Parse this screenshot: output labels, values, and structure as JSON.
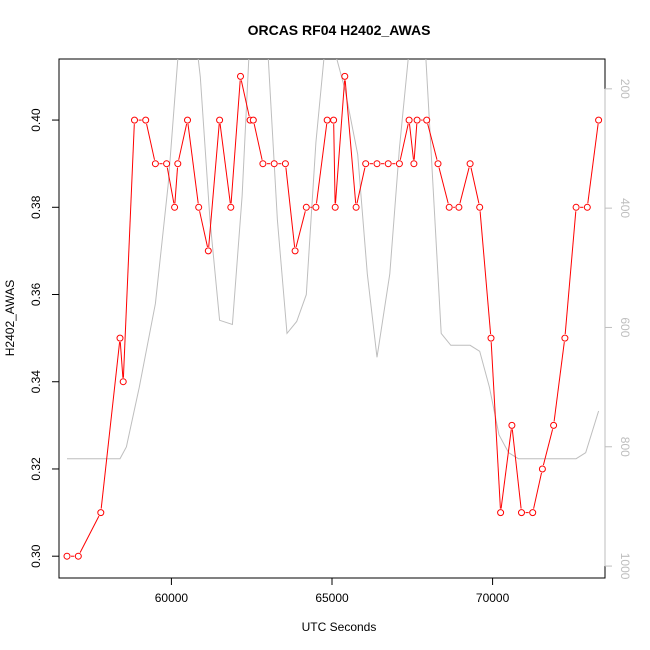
{
  "chart_data": {
    "type": "line",
    "title": "ORCAS RF04 H2402_AWAS",
    "xlabel": "UTC Seconds",
    "ylabel": "H2402_AWAS",
    "xlim": [
      56500,
      73500
    ],
    "ylim": [
      0.295,
      0.414
    ],
    "x_ticks": [
      60000,
      65000,
      70000
    ],
    "y_ticks": [
      0.3,
      0.32,
      0.34,
      0.36,
      0.38,
      0.4
    ],
    "y_tick_labels": [
      "0.30",
      "0.32",
      "0.34",
      "0.36",
      "0.38",
      "0.40"
    ],
    "y2lim": [
      1020,
      150
    ],
    "y2_ticks": [
      200,
      400,
      600,
      800,
      1000
    ],
    "grid": false,
    "colors": {
      "series": "#ff0000",
      "secondary": "#bebebe"
    },
    "series": [
      {
        "marker": "open-circle",
        "x": [
          56750,
          57100,
          57800,
          58400,
          58500,
          58850,
          59200,
          59500,
          59850,
          60100,
          60200,
          60500,
          60850,
          61150,
          61500,
          61850,
          62150,
          62450,
          62550,
          62850,
          63200,
          63550,
          63850,
          64200,
          64500,
          64850,
          65050,
          65100,
          65400,
          65750,
          66050,
          66400,
          66750,
          67100,
          67400,
          67550,
          67650,
          67950,
          68300,
          68650,
          68950,
          69300,
          69600,
          69950,
          70250,
          70600,
          70900,
          71250,
          71550,
          71900,
          72250,
          72600,
          72950,
          73300
        ],
        "values": [
          0.3,
          0.3,
          0.31,
          0.35,
          0.34,
          0.4,
          0.4,
          0.39,
          0.39,
          0.38,
          0.39,
          0.4,
          0.38,
          0.37,
          0.4,
          0.38,
          0.41,
          0.4,
          0.4,
          0.39,
          0.39,
          0.39,
          0.37,
          0.38,
          0.38,
          0.4,
          0.4,
          0.38,
          0.41,
          0.38,
          0.39,
          0.39,
          0.39,
          0.39,
          0.4,
          0.39,
          0.4,
          0.4,
          0.39,
          0.38,
          0.38,
          0.39,
          0.38,
          0.35,
          0.31,
          0.33,
          0.31,
          0.31,
          0.32,
          0.33,
          0.35,
          0.38,
          0.38,
          0.4
        ]
      },
      {
        "axis": "right",
        "x": [
          56750,
          58400,
          58600,
          59000,
          59500,
          59900,
          60300,
          60600,
          60900,
          61200,
          61500,
          61900,
          62200,
          62500,
          62900,
          63300,
          63600,
          63900,
          64200,
          64500,
          64800,
          65100,
          65400,
          65800,
          66100,
          66400,
          66800,
          67100,
          67500,
          67800,
          68100,
          68400,
          68700,
          69000,
          69300,
          69600,
          69900,
          70200,
          70500,
          70800,
          71100,
          71400,
          71700,
          72000,
          72300,
          72600,
          72900,
          73300
        ],
        "values": [
          820,
          820,
          800,
          700,
          560,
          360,
          80,
          40,
          180,
          420,
          588,
          595,
          380,
          50,
          40,
          420,
          610,
          590,
          545,
          290,
          120,
          140,
          200,
          310,
          510,
          650,
          510,
          300,
          80,
          30,
          320,
          610,
          630,
          630,
          630,
          640,
          700,
          780,
          810,
          820,
          820,
          820,
          820,
          820,
          820,
          820,
          810,
          740
        ]
      }
    ]
  }
}
